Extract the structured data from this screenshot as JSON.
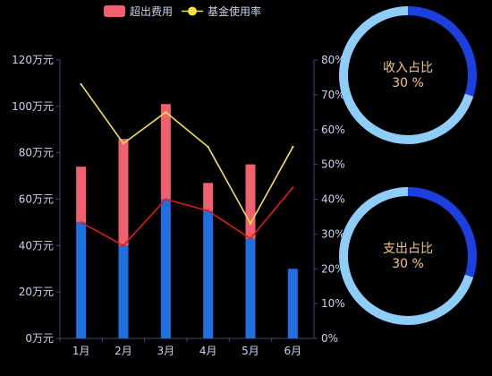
{
  "chart_data": [
    {
      "type": "bar+line",
      "categories": [
        "1月",
        "2月",
        "3月",
        "4月",
        "5月",
        "6月"
      ],
      "legend": [
        {
          "name": "超出费用",
          "shape": "rect",
          "color": "#f0606f"
        },
        {
          "name": "基金使用率",
          "shape": "line-circle",
          "color": "#f6e14a"
        }
      ],
      "legend_placement": "top",
      "y_left": {
        "min": 0,
        "max": 120,
        "step": 20,
        "suffix": "万元",
        "ticks": [
          "0万元",
          "20万元",
          "40万元",
          "60万元",
          "80万元",
          "100万元",
          "120万元"
        ]
      },
      "y_right": {
        "min": 0,
        "max": 80,
        "step": 10,
        "suffix": "%",
        "ticks": [
          "0%",
          "10%",
          "20%",
          "30%",
          "40%",
          "50%",
          "60%",
          "70%",
          "80%"
        ]
      },
      "grid": false,
      "series": [
        {
          "kind": "bar",
          "stack": "total",
          "axis": "left",
          "color": "#1f6fe0",
          "values": [
            50,
            40,
            60,
            55,
            43,
            30
          ]
        },
        {
          "kind": "bar",
          "stack": "total",
          "axis": "left",
          "name": "超出费用",
          "color": "#f0606f",
          "values": [
            24,
            46,
            41,
            12,
            32,
            0
          ]
        },
        {
          "kind": "line",
          "axis": "left",
          "color": "#e01818",
          "values": [
            50,
            40,
            60,
            55,
            43,
            65
          ]
        },
        {
          "kind": "line",
          "axis": "right",
          "name": "基金使用率",
          "color": "#f6e14a",
          "values": [
            73,
            56,
            65,
            55,
            33,
            55
          ]
        }
      ]
    },
    {
      "type": "pie",
      "style": "donut",
      "label_lines": [
        "收入占比",
        "30 %"
      ],
      "slices": [
        {
          "value": 30,
          "color": "#1c3fe0"
        },
        {
          "value": 70,
          "color": "#8ecdf7"
        }
      ]
    },
    {
      "type": "pie",
      "style": "donut",
      "label_lines": [
        "支出占比",
        "30 %"
      ],
      "slices": [
        {
          "value": 30,
          "color": "#1c3fe0"
        },
        {
          "value": 70,
          "color": "#8ecdf7"
        }
      ]
    }
  ],
  "colors": {
    "axis": "#3a4a7a",
    "tick_text": "#c8d4f0",
    "legend_text": "#c8d4f0",
    "donut_text": "#f6c77a"
  }
}
